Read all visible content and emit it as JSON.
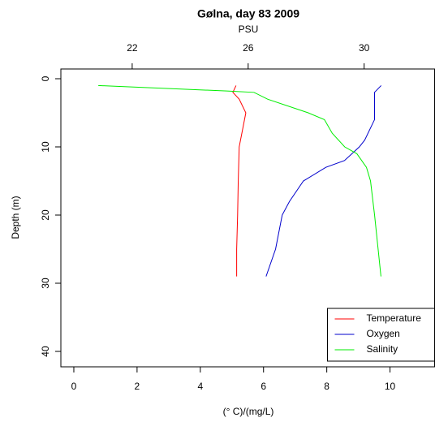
{
  "chart_data": {
    "type": "line",
    "title": "Gølna, day 83 2009",
    "xlabel": "(° C)/(mg/L)",
    "x2label": "PSU",
    "ylabel": "Depth (m)",
    "xlim": [
      -0.41,
      11.41
    ],
    "xticks": [
      0,
      2,
      4,
      6,
      8,
      10
    ],
    "x2lim": [
      19.54,
      32.43
    ],
    "x2ticks": [
      22,
      26,
      30
    ],
    "ylim": [
      -1.43,
      42.26
    ],
    "yticks": [
      0,
      10,
      20,
      30,
      40
    ],
    "y_inverted": true,
    "legend_position": "bottom-right",
    "series": [
      {
        "name": "Temperature",
        "color": "#ff0000",
        "axis": "x",
        "depth": [
          1,
          2,
          3,
          5,
          10,
          15,
          20,
          25,
          29
        ],
        "values": [
          5.13,
          5.03,
          5.23,
          5.44,
          5.23,
          5.2,
          5.18,
          5.15,
          5.15
        ]
      },
      {
        "name": "Oxygen",
        "color": "#0000cc",
        "axis": "x",
        "depth": [
          1,
          2,
          6,
          9,
          10,
          12,
          13,
          15,
          18,
          20,
          25,
          29
        ],
        "values": [
          9.72,
          9.51,
          9.51,
          9.2,
          9.03,
          8.56,
          7.97,
          7.26,
          6.82,
          6.59,
          6.38,
          6.08
        ]
      },
      {
        "name": "Salinity",
        "color": "#00ee00",
        "axis": "x2",
        "depth": [
          1,
          1.8,
          2,
          3,
          5,
          6,
          8,
          10,
          11,
          13,
          15,
          20,
          29
        ],
        "values": [
          20.83,
          25.27,
          26.2,
          26.67,
          28.07,
          28.63,
          28.9,
          29.33,
          29.75,
          30.08,
          30.22,
          30.36,
          30.58
        ]
      }
    ]
  }
}
